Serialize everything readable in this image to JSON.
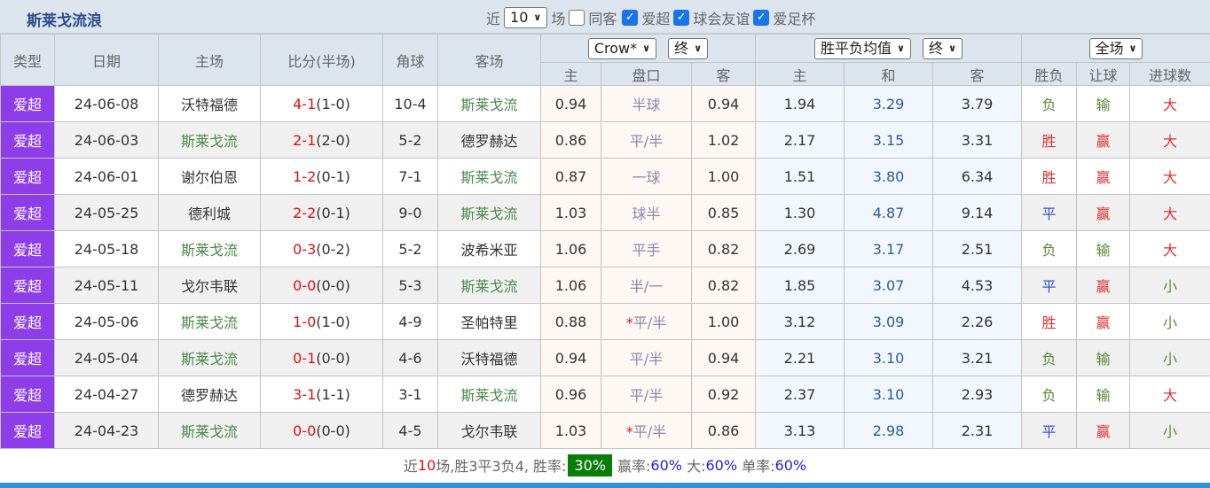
{
  "title": "斯莱戈流浪",
  "filters": {
    "near_label": "近",
    "count": "10",
    "games_label": "场",
    "same_away": "同客",
    "same_away_checked": false,
    "leagues": [
      {
        "label": "爱超",
        "checked": true
      },
      {
        "label": "球会友谊",
        "checked": true
      },
      {
        "label": "爱足杯",
        "checked": true
      }
    ]
  },
  "header": {
    "type": "类型",
    "date": "日期",
    "home": "主场",
    "score": "比分(半场)",
    "corner": "角球",
    "away": "客场",
    "company": "Crow*",
    "ah_stage": "终",
    "euro_type": "胜平负均值",
    "euro_stage": "终",
    "scope": "全场",
    "ah_home": "主",
    "handicap": "盘口",
    "ah_away": "客",
    "eu_home": "主",
    "eu_draw": "和",
    "eu_away": "客",
    "wl": "胜负",
    "hc": "让球",
    "goals": "进球数"
  },
  "colors": {
    "type_bg": "#8e3ee8",
    "team_highlight": "#4a8a4a",
    "score": "#e01010",
    "win_rate_bg": "#0a7d0a"
  },
  "rows": [
    {
      "type": "爱超",
      "date": "24-06-08",
      "home": "沃特福德",
      "ft": "4-1",
      "ht": "(1-0)",
      "corner": "10-4",
      "away": "斯莱戈流",
      "ah_h": "0.94",
      "pk": "半球",
      "star": "",
      "ah_a": "0.94",
      "eh": "1.94",
      "ed": "3.29",
      "ea": "3.79",
      "wl": "负",
      "hc": "输",
      "goals": "大"
    },
    {
      "type": "爱超",
      "date": "24-06-03",
      "home": "斯莱戈流",
      "ft": "2-1",
      "ht": "(2-0)",
      "corner": "5-2",
      "away": "德罗赫达",
      "ah_h": "0.86",
      "pk": "平/半",
      "star": "",
      "ah_a": "1.02",
      "eh": "2.17",
      "ed": "3.15",
      "ea": "3.31",
      "wl": "胜",
      "hc": "赢",
      "goals": "大"
    },
    {
      "type": "爱超",
      "date": "24-06-01",
      "home": "谢尔伯恩",
      "ft": "1-2",
      "ht": "(0-1)",
      "corner": "7-1",
      "away": "斯莱戈流",
      "ah_h": "0.87",
      "pk": "一球",
      "star": "",
      "ah_a": "1.00",
      "eh": "1.51",
      "ed": "3.80",
      "ea": "6.34",
      "wl": "胜",
      "hc": "赢",
      "goals": "大"
    },
    {
      "type": "爱超",
      "date": "24-05-25",
      "home": "德利城",
      "ft": "2-2",
      "ht": "(0-1)",
      "corner": "9-0",
      "away": "斯莱戈流",
      "ah_h": "1.03",
      "pk": "球半",
      "star": "",
      "ah_a": "0.85",
      "eh": "1.30",
      "ed": "4.87",
      "ea": "9.14",
      "wl": "平",
      "hc": "赢",
      "goals": "大"
    },
    {
      "type": "爱超",
      "date": "24-05-18",
      "home": "斯莱戈流",
      "ft": "0-3",
      "ht": "(0-2)",
      "corner": "5-2",
      "away": "波希米亚",
      "ah_h": "1.06",
      "pk": "平手",
      "star": "",
      "ah_a": "0.82",
      "eh": "2.69",
      "ed": "3.17",
      "ea": "2.51",
      "wl": "负",
      "hc": "输",
      "goals": "大"
    },
    {
      "type": "爱超",
      "date": "24-05-11",
      "home": "戈尔韦联",
      "ft": "0-0",
      "ht": "(0-0)",
      "corner": "5-3",
      "away": "斯莱戈流",
      "ah_h": "1.06",
      "pk": "半/一",
      "star": "",
      "ah_a": "0.82",
      "eh": "1.85",
      "ed": "3.07",
      "ea": "4.53",
      "wl": "平",
      "hc": "赢",
      "goals": "小"
    },
    {
      "type": "爱超",
      "date": "24-05-06",
      "home": "斯莱戈流",
      "ft": "1-0",
      "ht": "(1-0)",
      "corner": "4-9",
      "away": "圣帕特里",
      "ah_h": "0.88",
      "pk": "平/半",
      "star": "*",
      "ah_a": "1.00",
      "eh": "3.12",
      "ed": "3.09",
      "ea": "2.26",
      "wl": "胜",
      "hc": "赢",
      "goals": "小"
    },
    {
      "type": "爱超",
      "date": "24-05-04",
      "home": "斯莱戈流",
      "ft": "0-1",
      "ht": "(0-0)",
      "corner": "4-6",
      "away": "沃特福德",
      "ah_h": "0.94",
      "pk": "平/半",
      "star": "",
      "ah_a": "0.94",
      "eh": "2.21",
      "ed": "3.10",
      "ea": "3.21",
      "wl": "负",
      "hc": "输",
      "goals": "小"
    },
    {
      "type": "爱超",
      "date": "24-04-27",
      "home": "德罗赫达",
      "ft": "3-1",
      "ht": "(1-1)",
      "corner": "3-1",
      "away": "斯莱戈流",
      "ah_h": "0.96",
      "pk": "平/半",
      "star": "",
      "ah_a": "0.92",
      "eh": "2.37",
      "ed": "3.10",
      "ea": "2.93",
      "wl": "负",
      "hc": "输",
      "goals": "大"
    },
    {
      "type": "爱超",
      "date": "24-04-23",
      "home": "斯莱戈流",
      "ft": "0-0",
      "ht": "(0-0)",
      "corner": "4-5",
      "away": "戈尔韦联",
      "ah_h": "1.03",
      "pk": "平/半",
      "star": "*",
      "ah_a": "0.86",
      "eh": "3.13",
      "ed": "2.98",
      "ea": "2.31",
      "wl": "平",
      "hc": "赢",
      "goals": "小"
    }
  ],
  "summary": {
    "p1": "近",
    "n": "10",
    "p2": "场,胜3平3负4, 胜率:",
    "win_rate": "30%",
    "l1": "赢率:",
    "v1": "60%",
    "l2": "大:",
    "v2": "60%",
    "l3": "单率:",
    "v3": "60%"
  }
}
